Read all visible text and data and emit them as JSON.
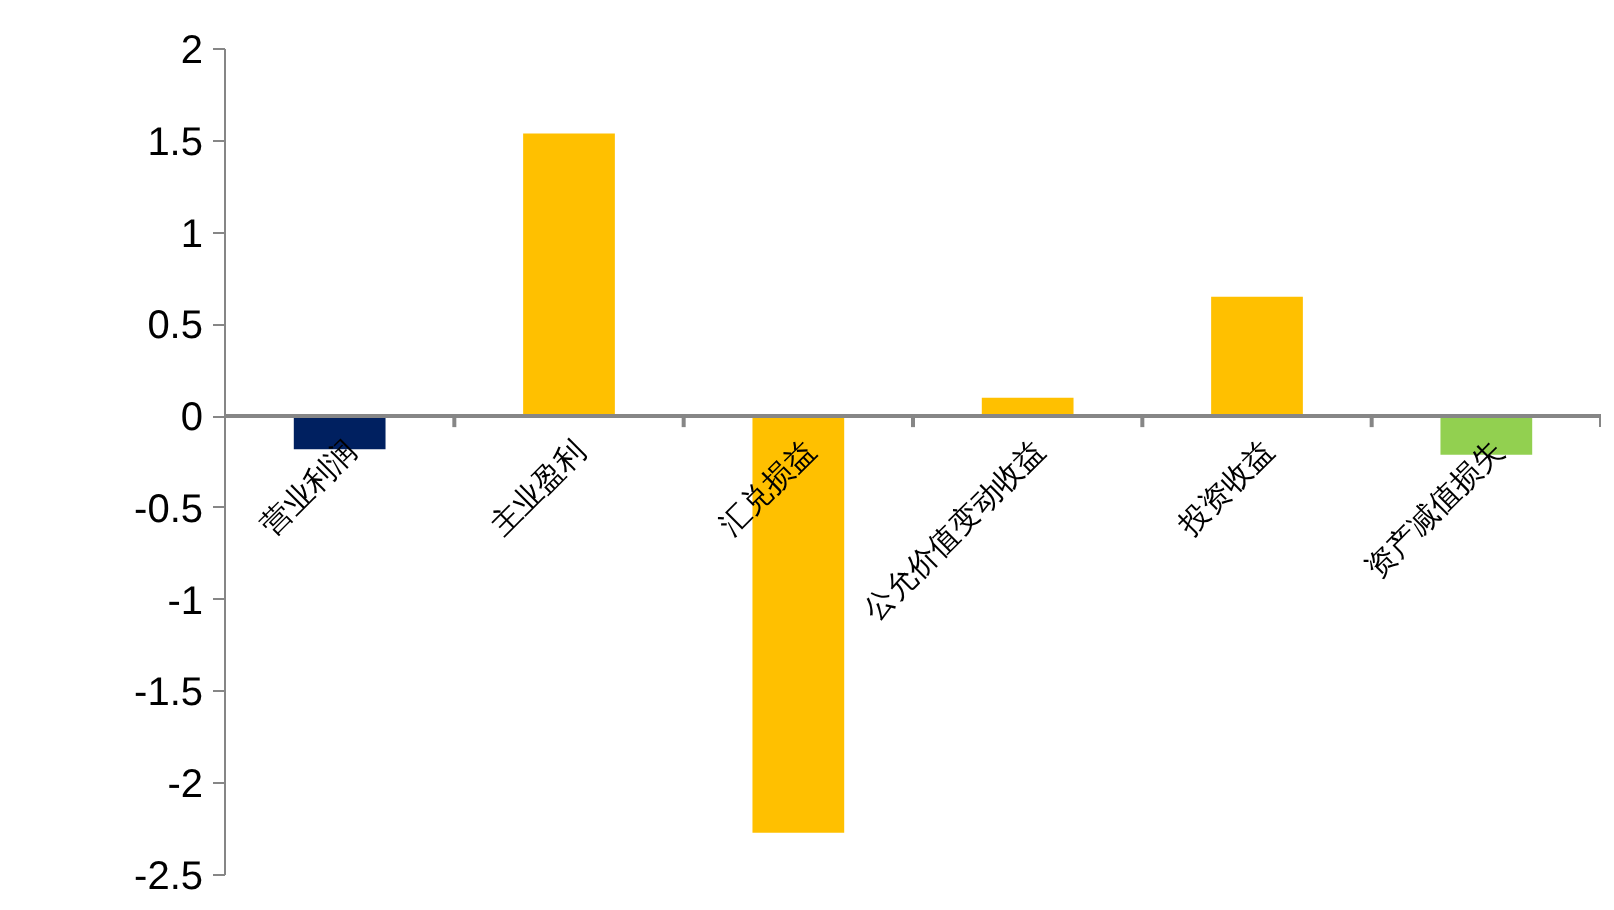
{
  "chart_data": {
    "type": "bar",
    "categories": [
      "营业利润",
      "主业盈利",
      "汇兑损益",
      "公允价值变动收益",
      "投资收益",
      "资产减值损失"
    ],
    "values": [
      -0.18,
      1.54,
      -2.27,
      0.1,
      0.65,
      -0.21
    ],
    "colors": [
      "#002060",
      "#ffc000",
      "#ffc000",
      "#ffc000",
      "#ffc000",
      "#92d050"
    ],
    "ylim": [
      -2.5,
      2
    ],
    "yticks": [
      {
        "value": -2.5,
        "label": "-2.5"
      },
      {
        "value": -2,
        "label": "-2"
      },
      {
        "value": -1.5,
        "label": "-1.5"
      },
      {
        "value": -1,
        "label": "-1"
      },
      {
        "value": -0.5,
        "label": "-0.5"
      },
      {
        "value": 0,
        "label": "0"
      },
      {
        "value": 0.5,
        "label": "0.5"
      },
      {
        "value": 1,
        "label": "1"
      },
      {
        "value": 1.5,
        "label": "1.5"
      },
      {
        "value": 2,
        "label": "2"
      }
    ],
    "grid": false
  }
}
